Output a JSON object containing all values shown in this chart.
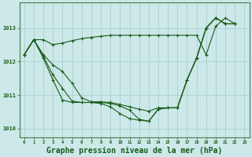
{
  "background_color": "#cce8e8",
  "grid_color": "#aad0d0",
  "line_color": "#1a5c1a",
  "title": "Graphe pression niveau de la mer (hPa)",
  "title_fontsize": 7,
  "ylim": [
    1009.75,
    1013.75
  ],
  "yticks": [
    1010,
    1011,
    1012,
    1013
  ],
  "xticks": [
    0,
    1,
    2,
    3,
    4,
    5,
    6,
    7,
    8,
    9,
    10,
    11,
    12,
    13,
    14,
    15,
    16,
    17,
    18,
    19,
    20,
    21,
    22,
    23
  ],
  "series": [
    {
      "x": [
        0,
        1,
        2,
        3,
        4,
        5,
        6,
        7,
        8,
        9,
        10,
        11,
        12,
        13,
        14,
        15,
        16,
        17,
        18,
        19,
        20,
        21,
        22
      ],
      "y": [
        1012.2,
        1012.65,
        1012.65,
        1012.5,
        1012.55,
        1012.62,
        1012.68,
        1012.72,
        1012.75,
        1012.78,
        1012.78,
        1012.78,
        1012.78,
        1012.78,
        1012.78,
        1012.78,
        1012.78,
        1012.78,
        1012.78,
        1012.2,
        1013.05,
        1013.3,
        1013.12
      ]
    },
    {
      "x": [
        0,
        1,
        2,
        3,
        4,
        5,
        6,
        7,
        8,
        9,
        10,
        11,
        12,
        13,
        14,
        15,
        16,
        17,
        18,
        19,
        20,
        21,
        22
      ],
      "y": [
        1012.2,
        1012.65,
        1012.2,
        1011.9,
        1011.7,
        1011.35,
        1010.92,
        1010.8,
        1010.8,
        1010.78,
        1010.72,
        1010.65,
        1010.58,
        1010.52,
        1010.62,
        1010.62,
        1010.62,
        1011.45,
        1012.1,
        1013.0,
        1013.3,
        1013.12,
        1013.12
      ]
    },
    {
      "x": [
        0,
        1,
        2,
        3,
        4,
        5,
        6,
        7,
        8,
        9,
        10,
        11,
        12,
        13,
        14,
        15,
        16,
        17,
        18,
        19,
        20,
        21,
        22
      ],
      "y": [
        1012.2,
        1012.65,
        1012.15,
        1011.6,
        1011.2,
        1010.82,
        1010.78,
        1010.78,
        1010.78,
        1010.75,
        1010.68,
        1010.55,
        1010.28,
        1010.22,
        1010.58,
        1010.62,
        1010.62,
        1011.45,
        1012.1,
        1013.0,
        1013.3,
        1013.12,
        1013.12
      ]
    },
    {
      "x": [
        0,
        1,
        2,
        3,
        4,
        5,
        6,
        7,
        8,
        9,
        10,
        11,
        12,
        13,
        14,
        15,
        16,
        17,
        18,
        19,
        20,
        21,
        22
      ],
      "y": [
        1012.2,
        1012.65,
        1012.1,
        1011.45,
        1010.85,
        1010.78,
        1010.78,
        1010.78,
        1010.75,
        1010.65,
        1010.45,
        1010.3,
        1010.25,
        1010.22,
        1010.58,
        1010.62,
        1010.62,
        1011.45,
        1012.1,
        1013.0,
        1013.3,
        1013.12,
        1013.12
      ]
    }
  ]
}
